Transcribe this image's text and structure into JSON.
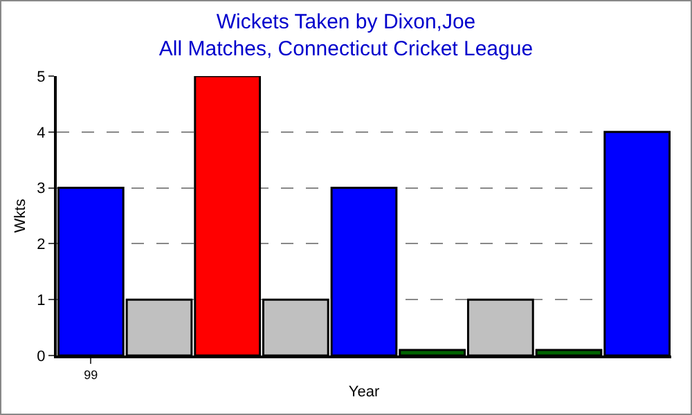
{
  "chart_data": {
    "type": "bar",
    "title": "Wickets Taken by Dixon,Joe",
    "subtitle": "All Matches, Connecticut Cricket League",
    "xlabel": "Year",
    "ylabel": "Wkts",
    "categories": [
      "99",
      null,
      null,
      null,
      null,
      null,
      null,
      null,
      null
    ],
    "values": [
      3,
      1,
      5,
      1,
      3,
      0.1,
      1,
      0.1,
      4
    ],
    "colors": [
      "#0000ff",
      "#c0c0c0",
      "#ff0000",
      "#c0c0c0",
      "#0000ff",
      "#006400",
      "#c0c0c0",
      "#006400",
      "#0000ff"
    ],
    "ylim": [
      0,
      5
    ],
    "yticks": [
      0,
      1,
      2,
      3,
      4,
      5
    ],
    "grid": "y",
    "legend": false
  }
}
